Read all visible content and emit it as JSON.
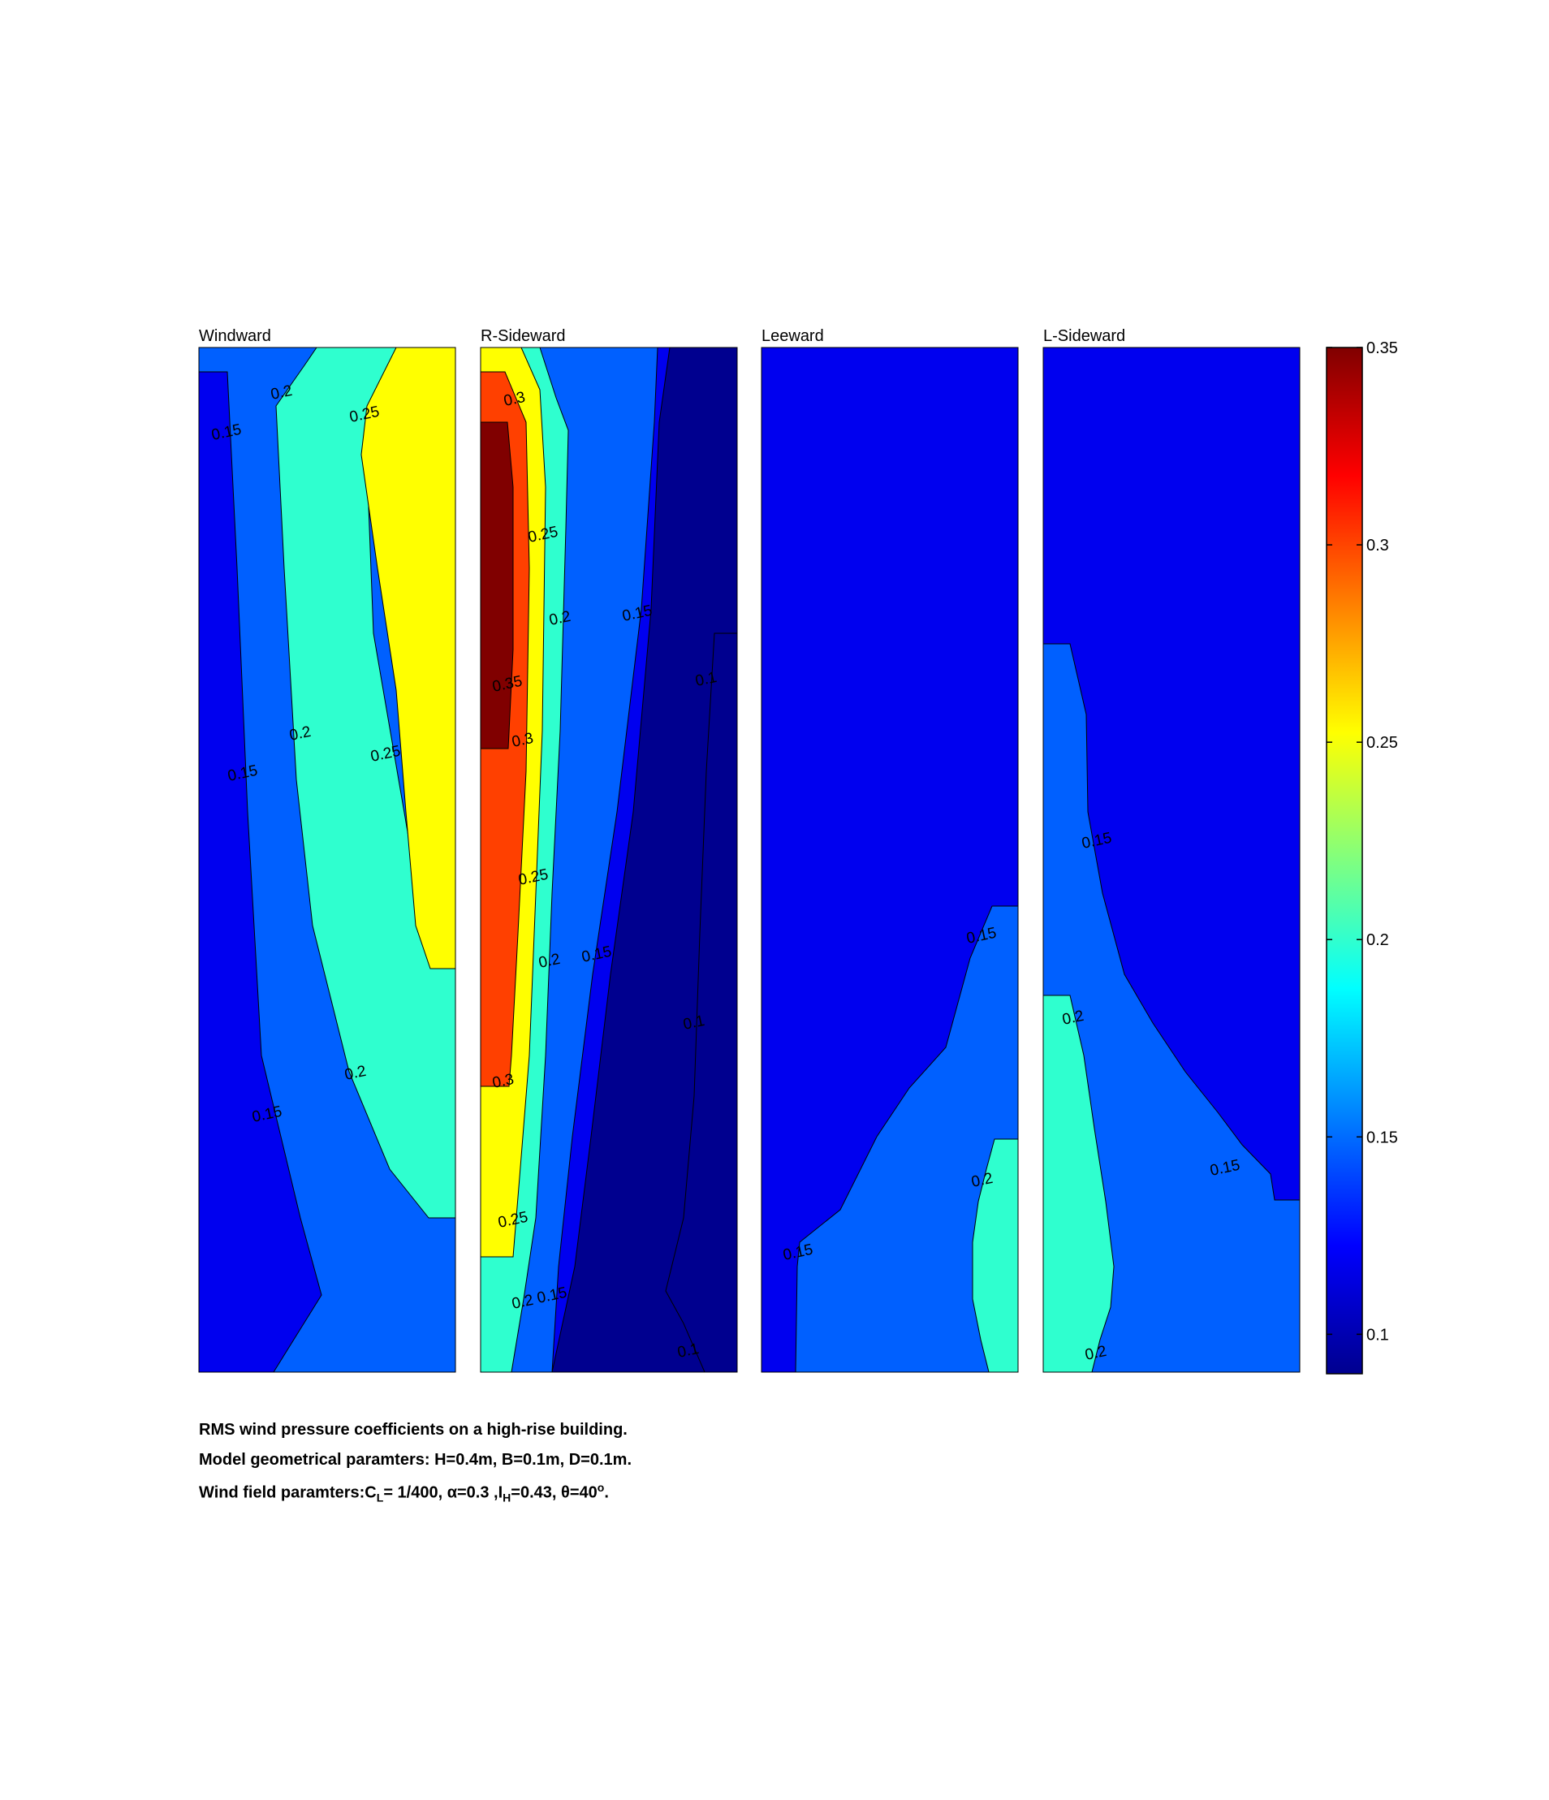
{
  "chart_data": {
    "type": "contour",
    "panels": [
      {
        "title": "Windward",
        "contour_labels": [
          "0.2",
          "0.25",
          "0.15",
          "0.2",
          "0.25",
          "0.15",
          "0.2",
          "0.15"
        ]
      },
      {
        "title": "R-Sideward",
        "contour_labels": [
          "0.3",
          "0.25",
          "0.2",
          "0.15",
          "0.1",
          "0.35",
          "0.3",
          "0.25",
          "0.2",
          "0.15",
          "0.1",
          "0.3",
          "0.25",
          "0.2",
          "0.15",
          "0.1"
        ]
      },
      {
        "title": "Leeward",
        "contour_labels": [
          "0.15",
          "0.2",
          "0.15"
        ]
      },
      {
        "title": "L-Sideward",
        "contour_labels": [
          "0.15",
          "0.2",
          "0.15",
          "0.2"
        ]
      }
    ],
    "levels": [
      0.1,
      0.15,
      0.2,
      0.25,
      0.3,
      0.35
    ],
    "level_colors": [
      "#00008f",
      "#0000ef",
      "#0060ff",
      "#2fffcf",
      "#ffff00",
      "#ff4000",
      "#800000"
    ],
    "colorbar": {
      "ticks": [
        "0.35",
        "0.3",
        "0.25",
        "0.2",
        "0.15",
        "0.1"
      ],
      "range": [
        0.09,
        0.35
      ]
    }
  },
  "caption": {
    "line1": "RMS wind pressure coefficients on a high-rise building.",
    "line2": "Model geometrical paramters: H=0.4m, B=0.1m, D=0.1m.",
    "line3_prefix": "Wind field paramters:C",
    "line3_sub1": "L",
    "line3_mid1": "= 1/400, α=0.3 ,I",
    "line3_sub2": "H",
    "line3_mid2": "=0.43, θ=40",
    "line3_sup": "o",
    "line3_end": "."
  }
}
